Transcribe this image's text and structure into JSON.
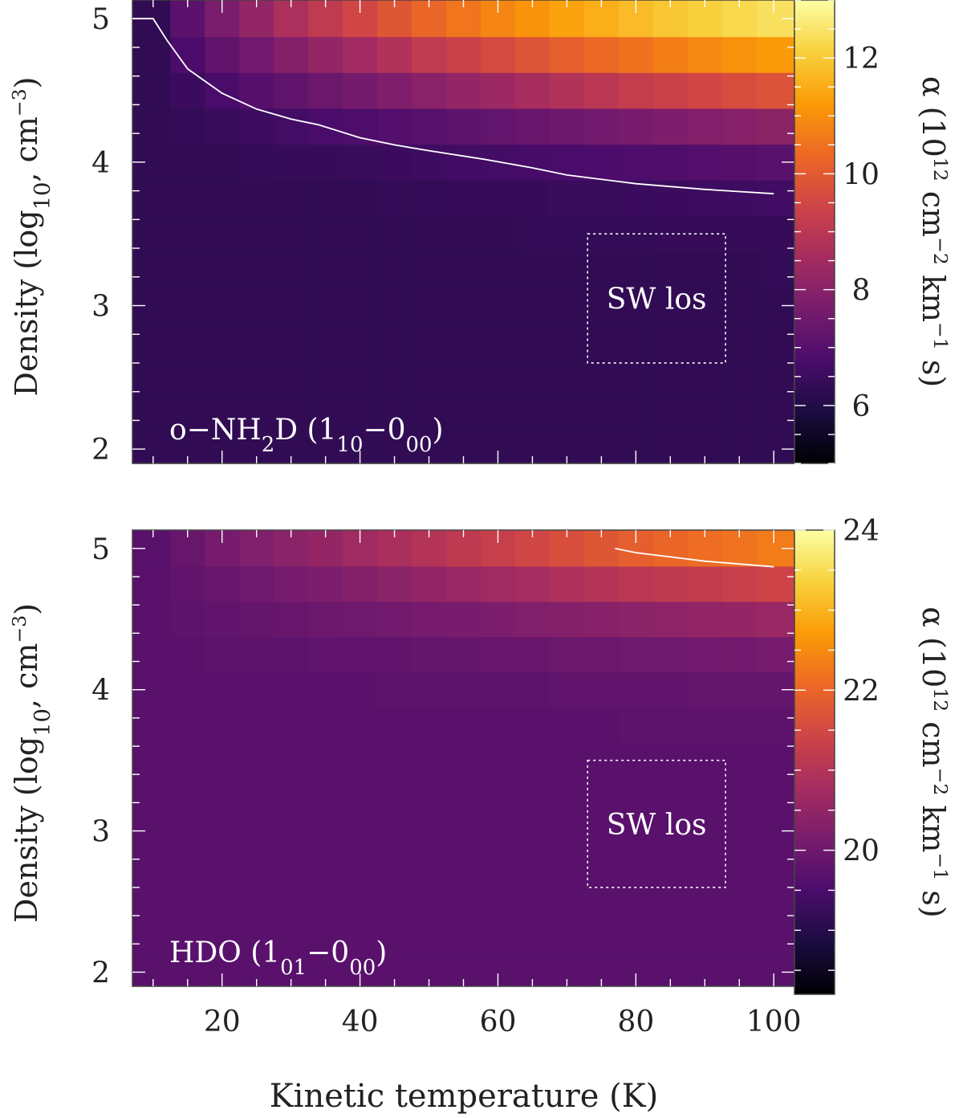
{
  "xlabel": "Kinetic temperature (K)",
  "colorscale": [
    "#000004",
    "#1b0c41",
    "#4a0c6b",
    "#781c6d",
    "#a52c60",
    "#cf4446",
    "#ed6925",
    "#fb9b06",
    "#f7d13d",
    "#fcffa4"
  ],
  "chart_data": [
    {
      "type": "heatmap",
      "ylabel": "Density (log10, cm−3)",
      "clabel": "α (10^12 cm^−2 km^−1 s)",
      "annotation": "o−NH2D (1_10−0_00)",
      "box_label": "SW los",
      "xlim": [
        7,
        103
      ],
      "ylim": [
        1.9,
        5.13
      ],
      "x_ticks": [
        20,
        40,
        60,
        80,
        100
      ],
      "y_ticks": [
        2,
        3,
        4,
        5
      ],
      "x_centers": [
        10,
        15,
        20,
        25,
        30,
        35,
        40,
        45,
        50,
        55,
        60,
        65,
        70,
        75,
        80,
        85,
        90,
        95,
        100
      ],
      "y_rows": [
        2.0,
        2.25,
        2.5,
        2.75,
        3.0,
        3.25,
        3.5,
        3.75,
        4.0,
        4.25,
        4.5,
        4.75,
        5.0
      ],
      "values": [
        [
          6.3,
          6.3,
          6.3,
          6.3,
          6.3,
          6.3,
          6.3,
          6.3,
          6.3,
          6.3,
          6.3,
          6.3,
          6.3,
          6.3,
          6.3,
          6.3,
          6.3,
          6.3,
          6.3
        ],
        [
          6.3,
          6.3,
          6.3,
          6.3,
          6.3,
          6.3,
          6.3,
          6.3,
          6.3,
          6.3,
          6.3,
          6.3,
          6.3,
          6.3,
          6.3,
          6.3,
          6.3,
          6.3,
          6.3
        ],
        [
          6.3,
          6.3,
          6.3,
          6.3,
          6.3,
          6.3,
          6.3,
          6.3,
          6.3,
          6.3,
          6.3,
          6.3,
          6.3,
          6.3,
          6.3,
          6.3,
          6.3,
          6.3,
          6.3
        ],
        [
          6.3,
          6.3,
          6.3,
          6.3,
          6.3,
          6.3,
          6.3,
          6.3,
          6.3,
          6.3,
          6.3,
          6.3,
          6.3,
          6.3,
          6.3,
          6.3,
          6.3,
          6.3,
          6.3
        ],
        [
          6.3,
          6.3,
          6.3,
          6.3,
          6.3,
          6.3,
          6.3,
          6.3,
          6.3,
          6.3,
          6.3,
          6.3,
          6.3,
          6.3,
          6.3,
          6.3,
          6.3,
          6.3,
          6.3
        ],
        [
          6.3,
          6.3,
          6.3,
          6.3,
          6.3,
          6.3,
          6.3,
          6.3,
          6.3,
          6.3,
          6.3,
          6.3,
          6.3,
          6.3,
          6.3,
          6.3,
          6.3,
          6.3,
          6.35
        ],
        [
          6.3,
          6.3,
          6.3,
          6.3,
          6.3,
          6.3,
          6.3,
          6.3,
          6.3,
          6.3,
          6.3,
          6.35,
          6.35,
          6.35,
          6.35,
          6.4,
          6.4,
          6.4,
          6.4
        ],
        [
          6.3,
          6.3,
          6.3,
          6.3,
          6.3,
          6.3,
          6.3,
          6.35,
          6.35,
          6.4,
          6.4,
          6.4,
          6.45,
          6.45,
          6.5,
          6.5,
          6.55,
          6.55,
          6.6
        ],
        [
          6.3,
          6.3,
          6.3,
          6.35,
          6.4,
          6.4,
          6.45,
          6.5,
          6.55,
          6.6,
          6.65,
          6.7,
          6.75,
          6.8,
          6.85,
          6.9,
          6.95,
          7.0,
          7.05
        ],
        [
          6.3,
          6.35,
          6.45,
          6.55,
          6.65,
          6.75,
          6.85,
          6.95,
          7.05,
          7.15,
          7.25,
          7.35,
          7.45,
          7.55,
          7.65,
          7.75,
          7.85,
          7.95,
          8.05
        ],
        [
          6.3,
          6.5,
          6.75,
          7.0,
          7.2,
          7.4,
          7.6,
          7.8,
          8.0,
          8.2,
          8.4,
          8.6,
          8.8,
          9.0,
          9.2,
          9.35,
          9.5,
          9.65,
          9.8
        ],
        [
          6.3,
          6.8,
          7.2,
          7.55,
          7.9,
          8.2,
          8.5,
          8.8,
          9.1,
          9.35,
          9.6,
          9.85,
          10.1,
          10.3,
          10.5,
          10.7,
          10.9,
          11.05,
          11.2
        ],
        [
          6.3,
          7.1,
          7.7,
          8.2,
          8.7,
          9.1,
          9.5,
          9.9,
          10.25,
          10.55,
          10.85,
          11.1,
          11.35,
          11.55,
          11.75,
          11.95,
          12.1,
          12.25,
          12.4
        ]
      ],
      "clim": [
        5,
        13
      ],
      "cbar_ticks": [
        6,
        8,
        10,
        12
      ],
      "contour": {
        "x": [
          7,
          10,
          12,
          15,
          20,
          25,
          30,
          34,
          40,
          45,
          50,
          58,
          65,
          70,
          80,
          90,
          100
        ],
        "y": [
          5.0,
          5.0,
          4.85,
          4.65,
          4.48,
          4.37,
          4.3,
          4.26,
          4.17,
          4.12,
          4.08,
          4.02,
          3.96,
          3.91,
          3.85,
          3.81,
          3.78
        ]
      },
      "box": {
        "x": [
          73,
          93
        ],
        "y": [
          2.6,
          3.5
        ]
      }
    },
    {
      "type": "heatmap",
      "ylabel": "Density (log10, cm−3)",
      "clabel": "α (10^12 cm^−2 km^−1 s)",
      "annotation": "HDO (1_01−0_00)",
      "box_label": "SW los",
      "xlim": [
        7,
        103
      ],
      "ylim": [
        1.9,
        5.13
      ],
      "x_ticks": [
        20,
        40,
        60,
        80,
        100
      ],
      "y_ticks": [
        2,
        3,
        4,
        5
      ],
      "x_centers": [
        10,
        15,
        20,
        25,
        30,
        35,
        40,
        45,
        50,
        55,
        60,
        65,
        70,
        75,
        80,
        85,
        90,
        95,
        100
      ],
      "y_rows": [
        2.0,
        2.25,
        2.5,
        2.75,
        3.0,
        3.25,
        3.5,
        3.75,
        4.0,
        4.25,
        4.5,
        4.75,
        5.0
      ],
      "values": [
        [
          19.7,
          19.7,
          19.7,
          19.7,
          19.7,
          19.7,
          19.7,
          19.7,
          19.7,
          19.7,
          19.7,
          19.7,
          19.7,
          19.7,
          19.7,
          19.7,
          19.7,
          19.7,
          19.7
        ],
        [
          19.7,
          19.7,
          19.7,
          19.7,
          19.7,
          19.7,
          19.7,
          19.7,
          19.7,
          19.7,
          19.7,
          19.7,
          19.7,
          19.7,
          19.7,
          19.7,
          19.7,
          19.7,
          19.7
        ],
        [
          19.7,
          19.7,
          19.7,
          19.7,
          19.7,
          19.7,
          19.7,
          19.7,
          19.7,
          19.7,
          19.7,
          19.7,
          19.7,
          19.7,
          19.7,
          19.7,
          19.7,
          19.7,
          19.7
        ],
        [
          19.7,
          19.7,
          19.7,
          19.7,
          19.7,
          19.7,
          19.7,
          19.7,
          19.7,
          19.7,
          19.7,
          19.7,
          19.7,
          19.7,
          19.7,
          19.7,
          19.7,
          19.7,
          19.7
        ],
        [
          19.7,
          19.7,
          19.7,
          19.7,
          19.7,
          19.7,
          19.7,
          19.7,
          19.7,
          19.7,
          19.7,
          19.7,
          19.7,
          19.7,
          19.7,
          19.7,
          19.7,
          19.7,
          19.7
        ],
        [
          19.7,
          19.7,
          19.7,
          19.7,
          19.7,
          19.7,
          19.7,
          19.7,
          19.7,
          19.7,
          19.7,
          19.7,
          19.7,
          19.7,
          19.7,
          19.7,
          19.7,
          19.7,
          19.7
        ],
        [
          19.7,
          19.7,
          19.7,
          19.7,
          19.7,
          19.7,
          19.7,
          19.7,
          19.7,
          19.7,
          19.7,
          19.7,
          19.7,
          19.7,
          19.7,
          19.7,
          19.7,
          19.7,
          19.7
        ],
        [
          19.7,
          19.7,
          19.7,
          19.7,
          19.7,
          19.7,
          19.7,
          19.7,
          19.7,
          19.7,
          19.7,
          19.7,
          19.7,
          19.7,
          19.75,
          19.75,
          19.75,
          19.75,
          19.75
        ],
        [
          19.7,
          19.7,
          19.7,
          19.7,
          19.7,
          19.7,
          19.7,
          19.75,
          19.75,
          19.75,
          19.75,
          19.75,
          19.8,
          19.8,
          19.8,
          19.8,
          19.85,
          19.85,
          19.85
        ],
        [
          19.7,
          19.7,
          19.75,
          19.75,
          19.75,
          19.8,
          19.8,
          19.8,
          19.85,
          19.85,
          19.9,
          19.9,
          19.95,
          19.95,
          20.0,
          20.0,
          20.05,
          20.05,
          20.1
        ],
        [
          19.7,
          19.75,
          19.8,
          19.85,
          19.9,
          19.95,
          20.0,
          20.05,
          20.1,
          20.15,
          20.2,
          20.25,
          20.3,
          20.35,
          20.4,
          20.45,
          20.5,
          20.55,
          20.6
        ],
        [
          19.7,
          19.8,
          19.9,
          20.0,
          20.1,
          20.2,
          20.3,
          20.4,
          20.5,
          20.6,
          20.7,
          20.8,
          20.9,
          21.0,
          21.1,
          21.15,
          21.2,
          21.3,
          21.4
        ],
        [
          19.7,
          19.9,
          20.1,
          20.25,
          20.4,
          20.55,
          20.7,
          20.85,
          21.0,
          21.15,
          21.3,
          21.45,
          21.6,
          21.75,
          21.9,
          22.0,
          22.1,
          22.2,
          22.3
        ]
      ],
      "clim": [
        18.2,
        24
      ],
      "cbar_ticks": [
        20,
        22,
        24
      ],
      "contour": {
        "x": [
          77,
          80,
          85,
          90,
          95,
          100
        ],
        "y": [
          5.0,
          4.97,
          4.94,
          4.91,
          4.89,
          4.87
        ]
      },
      "box": {
        "x": [
          73,
          93
        ],
        "y": [
          2.6,
          3.5
        ]
      }
    }
  ]
}
